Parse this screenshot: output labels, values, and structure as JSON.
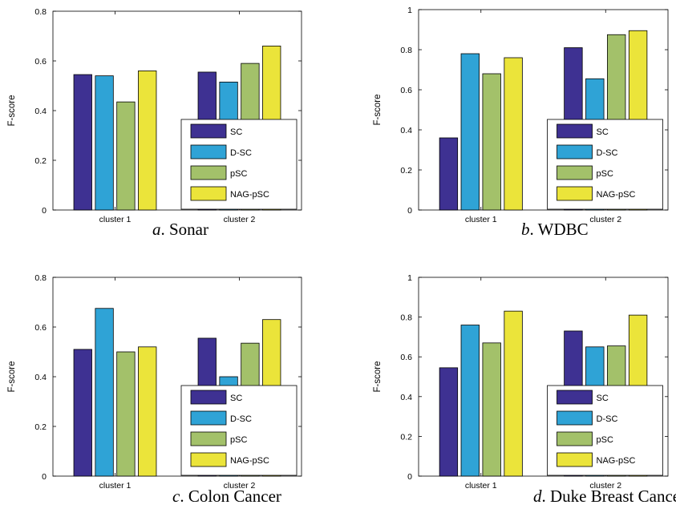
{
  "chart_data": [
    {
      "type": "bar",
      "caption_letter": "a",
      "caption_title": ". Sonar",
      "ylabel": "F-score",
      "ylim": [
        0,
        0.8
      ],
      "yticks": [
        "0",
        "0.2",
        "0.4",
        "0.6",
        "0.8"
      ],
      "categories": [
        "cluster 1",
        "cluster 2"
      ],
      "series": [
        {
          "name": "SC",
          "values": [
            0.545,
            0.555
          ]
        },
        {
          "name": "D-SC",
          "values": [
            0.54,
            0.515
          ]
        },
        {
          "name": "pSC",
          "values": [
            0.435,
            0.59
          ]
        },
        {
          "name": "NAG-pSC",
          "values": [
            0.56,
            0.66
          ]
        }
      ],
      "legend_position": "lower-right"
    },
    {
      "type": "bar",
      "caption_letter": "b",
      "caption_title": ". WDBC",
      "ylabel": "F-score",
      "ylim": [
        0,
        1
      ],
      "yticks": [
        "0",
        "0.2",
        "0.4",
        "0.6",
        "0.8",
        "1"
      ],
      "categories": [
        "cluster 1",
        "cluster 2"
      ],
      "series": [
        {
          "name": "SC",
          "values": [
            0.36,
            0.81
          ]
        },
        {
          "name": "D-SC",
          "values": [
            0.78,
            0.655
          ]
        },
        {
          "name": "pSC",
          "values": [
            0.68,
            0.875
          ]
        },
        {
          "name": "NAG-pSC",
          "values": [
            0.76,
            0.895
          ]
        }
      ],
      "legend_position": "lower-right"
    },
    {
      "type": "bar",
      "caption_letter": "c",
      "caption_title": ". Colon Cancer",
      "ylabel": "F-score",
      "ylim": [
        0,
        0.8
      ],
      "yticks": [
        "0",
        "0.2",
        "0.4",
        "0.6",
        "0.8"
      ],
      "categories": [
        "cluster 1",
        "cluster 2"
      ],
      "series": [
        {
          "name": "SC",
          "values": [
            0.51,
            0.555
          ]
        },
        {
          "name": "D-SC",
          "values": [
            0.675,
            0.4
          ]
        },
        {
          "name": "pSC",
          "values": [
            0.5,
            0.535
          ]
        },
        {
          "name": "NAG-pSC",
          "values": [
            0.52,
            0.63
          ]
        }
      ],
      "legend_position": "lower-right"
    },
    {
      "type": "bar",
      "caption_letter": "d",
      "caption_title": ". Duke Breast Cancer",
      "ylabel": "F-score",
      "ylim": [
        0,
        1
      ],
      "yticks": [
        "0",
        "0.2",
        "0.4",
        "0.6",
        "0.8",
        "1"
      ],
      "categories": [
        "cluster 1",
        "cluster 2"
      ],
      "series": [
        {
          "name": "SC",
          "values": [
            0.545,
            0.73
          ]
        },
        {
          "name": "D-SC",
          "values": [
            0.76,
            0.65
          ]
        },
        {
          "name": "pSC",
          "values": [
            0.67,
            0.655
          ]
        },
        {
          "name": "NAG-pSC",
          "values": [
            0.83,
            0.81
          ]
        }
      ],
      "legend_position": "lower-right"
    }
  ],
  "colors": {
    "SC": "#3e3192",
    "D-SC": "#2fa3d6",
    "pSC": "#a3c16a",
    "NAG-pSC": "#ebe43a"
  }
}
